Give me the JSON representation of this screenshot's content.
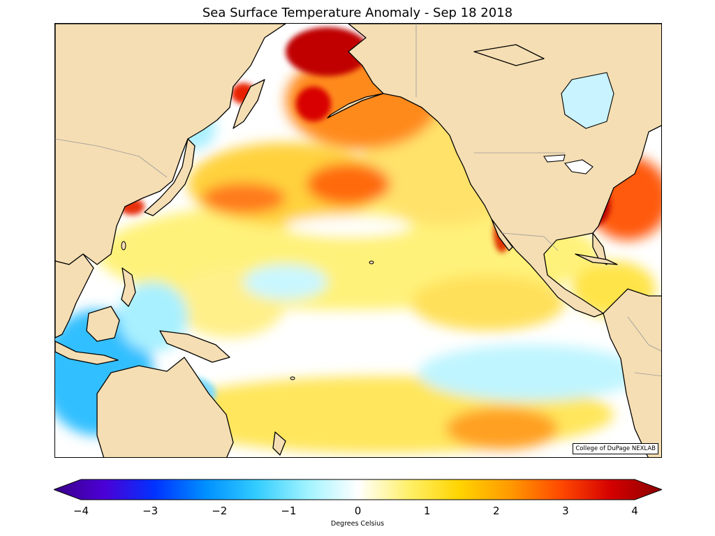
{
  "title": "Sea Surface Temperature Anomaly - Sep 18 2018",
  "credit": "College of DuPage NEXLAB",
  "colors": {
    "land": "#f5deb3",
    "coast": "#000000",
    "border": "#9a9a9a",
    "neutral": "#ffffff"
  },
  "colorbar": {
    "label": "Degrees Celsius",
    "range": [
      -4,
      4
    ],
    "ticks": [
      "−4",
      "−3",
      "−2",
      "−1",
      "0",
      "1",
      "2",
      "3",
      "4"
    ],
    "stops": [
      "#3a0087",
      "#4b00d6",
      "#0033ff",
      "#0090ff",
      "#33ccff",
      "#9ff3ff",
      "#ffffff",
      "#fff06a",
      "#ffd400",
      "#ff9a00",
      "#ff4a00",
      "#d40000",
      "#8b0000"
    ]
  },
  "map": {
    "type": "sea-surface-temperature-anomaly",
    "region": "North and Tropical Pacific Ocean"
  }
}
